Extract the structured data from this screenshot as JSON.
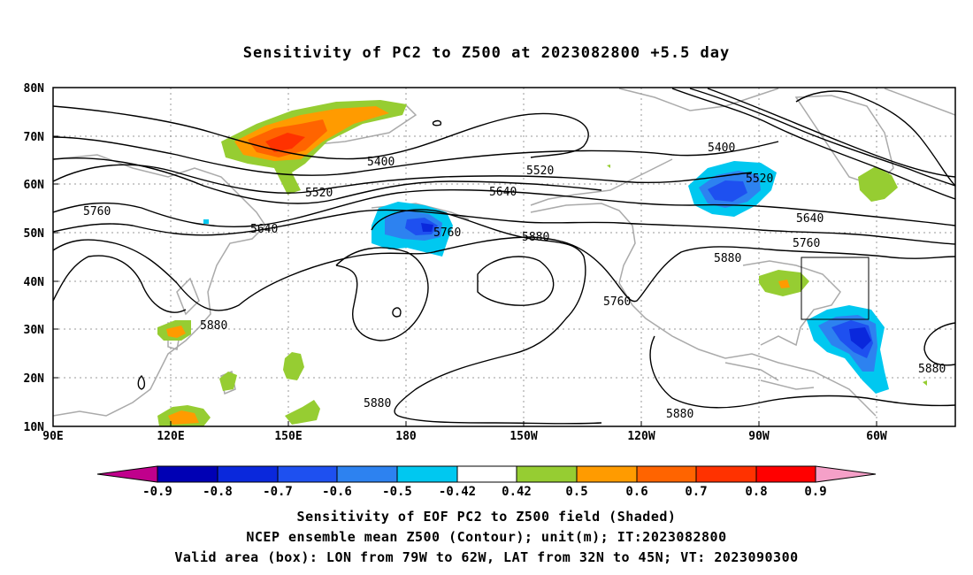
{
  "title": "Sensitivity of PC2 to Z500 at 2023082800 +5.5 day",
  "map": {
    "lat_labels": [
      "80N",
      "70N",
      "60N",
      "50N",
      "40N",
      "30N",
      "20N",
      "10N"
    ],
    "lon_labels": [
      "90E",
      "120E",
      "150E",
      "180",
      "150W",
      "120W",
      "90W",
      "60W"
    ],
    "contour_labels": [
      "5400",
      "5400",
      "5520",
      "5520",
      "5520",
      "5640",
      "5640",
      "5640",
      "5760",
      "5760",
      "5760",
      "5760",
      "5880",
      "5880",
      "5880",
      "5880",
      "5880",
      "5880"
    ]
  },
  "colorbar": {
    "tick_labels": [
      "-0.9",
      "-0.8",
      "-0.7",
      "-0.6",
      "-0.5",
      "-0.42",
      "0.42",
      "0.5",
      "0.6",
      "0.7",
      "0.8",
      "0.9"
    ],
    "colors": [
      "#c0008c",
      "#0000b4",
      "#0a28dc",
      "#1e50f0",
      "#2d82f0",
      "#00c8f0",
      "#ffffff",
      "#96cd32",
      "#ff9b00",
      "#ff6400",
      "#ff3200",
      "#ff0000",
      "#f5a0c8"
    ]
  },
  "caption": {
    "line1": "Sensitivity of EOF PC2 to Z500 field (Shaded)",
    "line2": "NCEP ensemble mean Z500 (Contour); unit(m); IT:2023082800",
    "line3": "Valid area (box): LON from 79W to 62W, LAT from 32N to 45N; VT: 2023090300"
  }
}
